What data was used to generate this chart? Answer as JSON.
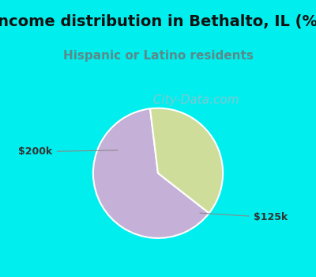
{
  "title": "Income distribution in Bethalto, IL (%)",
  "subtitle": "Hispanic or Latino residents",
  "title_fontsize": 14,
  "subtitle_fontsize": 11,
  "title_color": "#111111",
  "subtitle_color": "#5a8a8a",
  "background_color": "#00EEEE",
  "chart_bg_color": "#eaf5ea",
  "slices": [
    0.625,
    0.375
  ],
  "slice_colors": [
    "#C5B0D8",
    "#CEDD9A"
  ],
  "startangle": 97,
  "label_fontsize": 9,
  "watermark": "  City-Data.com",
  "watermark_color": "#aabbc8",
  "watermark_fontsize": 11
}
